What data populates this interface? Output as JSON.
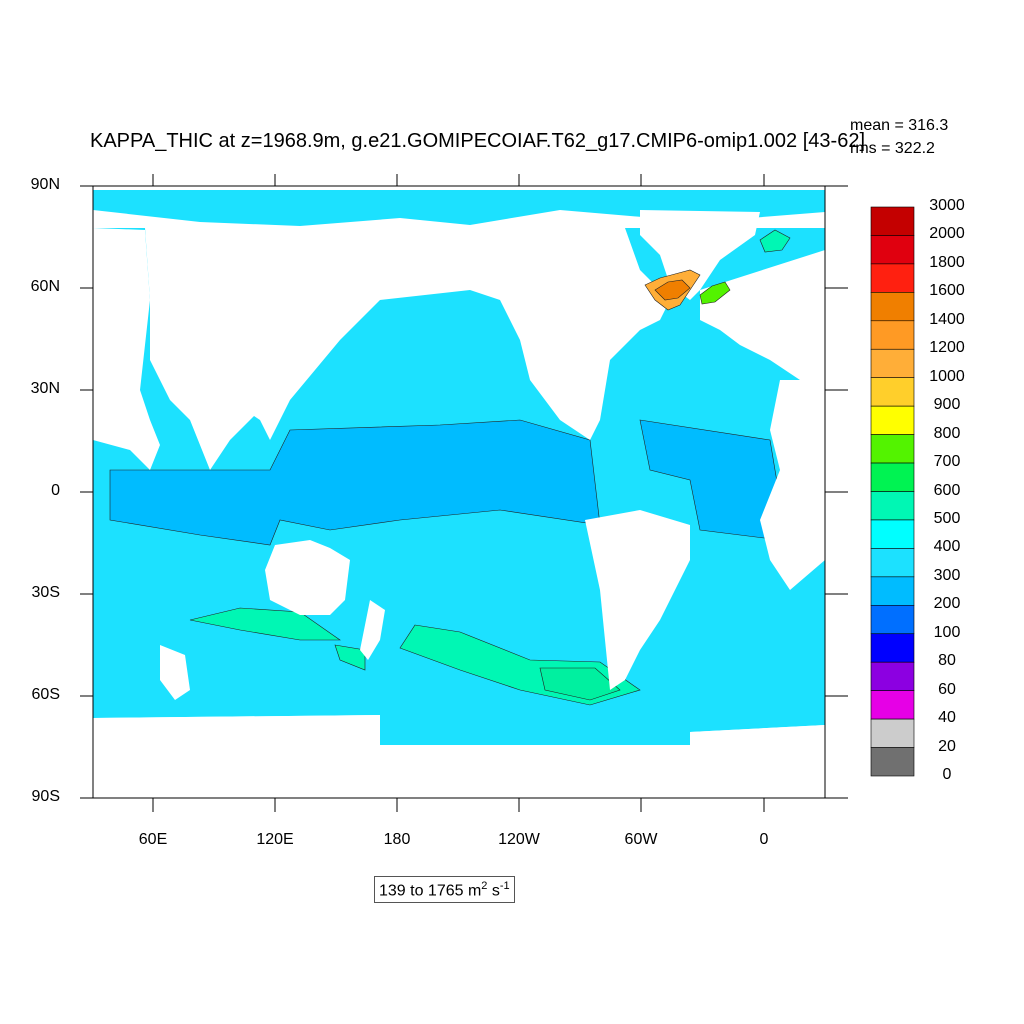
{
  "title": "KAPPA_THIC at z=1968.9m, g.e21.GOMIPECOIAF.T62_g17.CMIP6-omip1.002 [43-62]",
  "stats": {
    "mean": "mean = 316.3",
    "rms": "rms = 322.2"
  },
  "range_label": {
    "text": "139 to 1765 m",
    "unit_exp1": "2",
    "unit_mid": " s",
    "unit_exp2": "-1"
  },
  "y_ticks": [
    "90N",
    "60N",
    "30N",
    "0",
    "30S",
    "60S",
    "90S"
  ],
  "x_ticks": [
    "60E",
    "120E",
    "180",
    "120W",
    "60W",
    "0"
  ],
  "colorbar": {
    "labels": [
      "3000",
      "2000",
      "1800",
      "1600",
      "1400",
      "1200",
      "1000",
      "900",
      "800",
      "700",
      "600",
      "500",
      "400",
      "300",
      "200",
      "100",
      "80",
      "60",
      "40",
      "20",
      "0"
    ],
    "colors": [
      "#c40000",
      "#e0000f",
      "#ff2010",
      "#f07f00",
      "#ff9a24",
      "#ffae38",
      "#ffcf2b",
      "#ffff00",
      "#53f300",
      "#00f352",
      "#00f7b4",
      "#00ffff",
      "#1ce1ff",
      "#00bcff",
      "#006fff",
      "#0000ff",
      "#8c00e1",
      "#e600e6",
      "#cccccc",
      "#707070"
    ]
  },
  "map": {
    "ocean_base_color": "#1ce1ff",
    "tropical_color": "#00bcff",
    "southern_color": "#00f7b4",
    "hotspot_colors": [
      "#ffae38",
      "#f07f00",
      "#53f300"
    ]
  }
}
